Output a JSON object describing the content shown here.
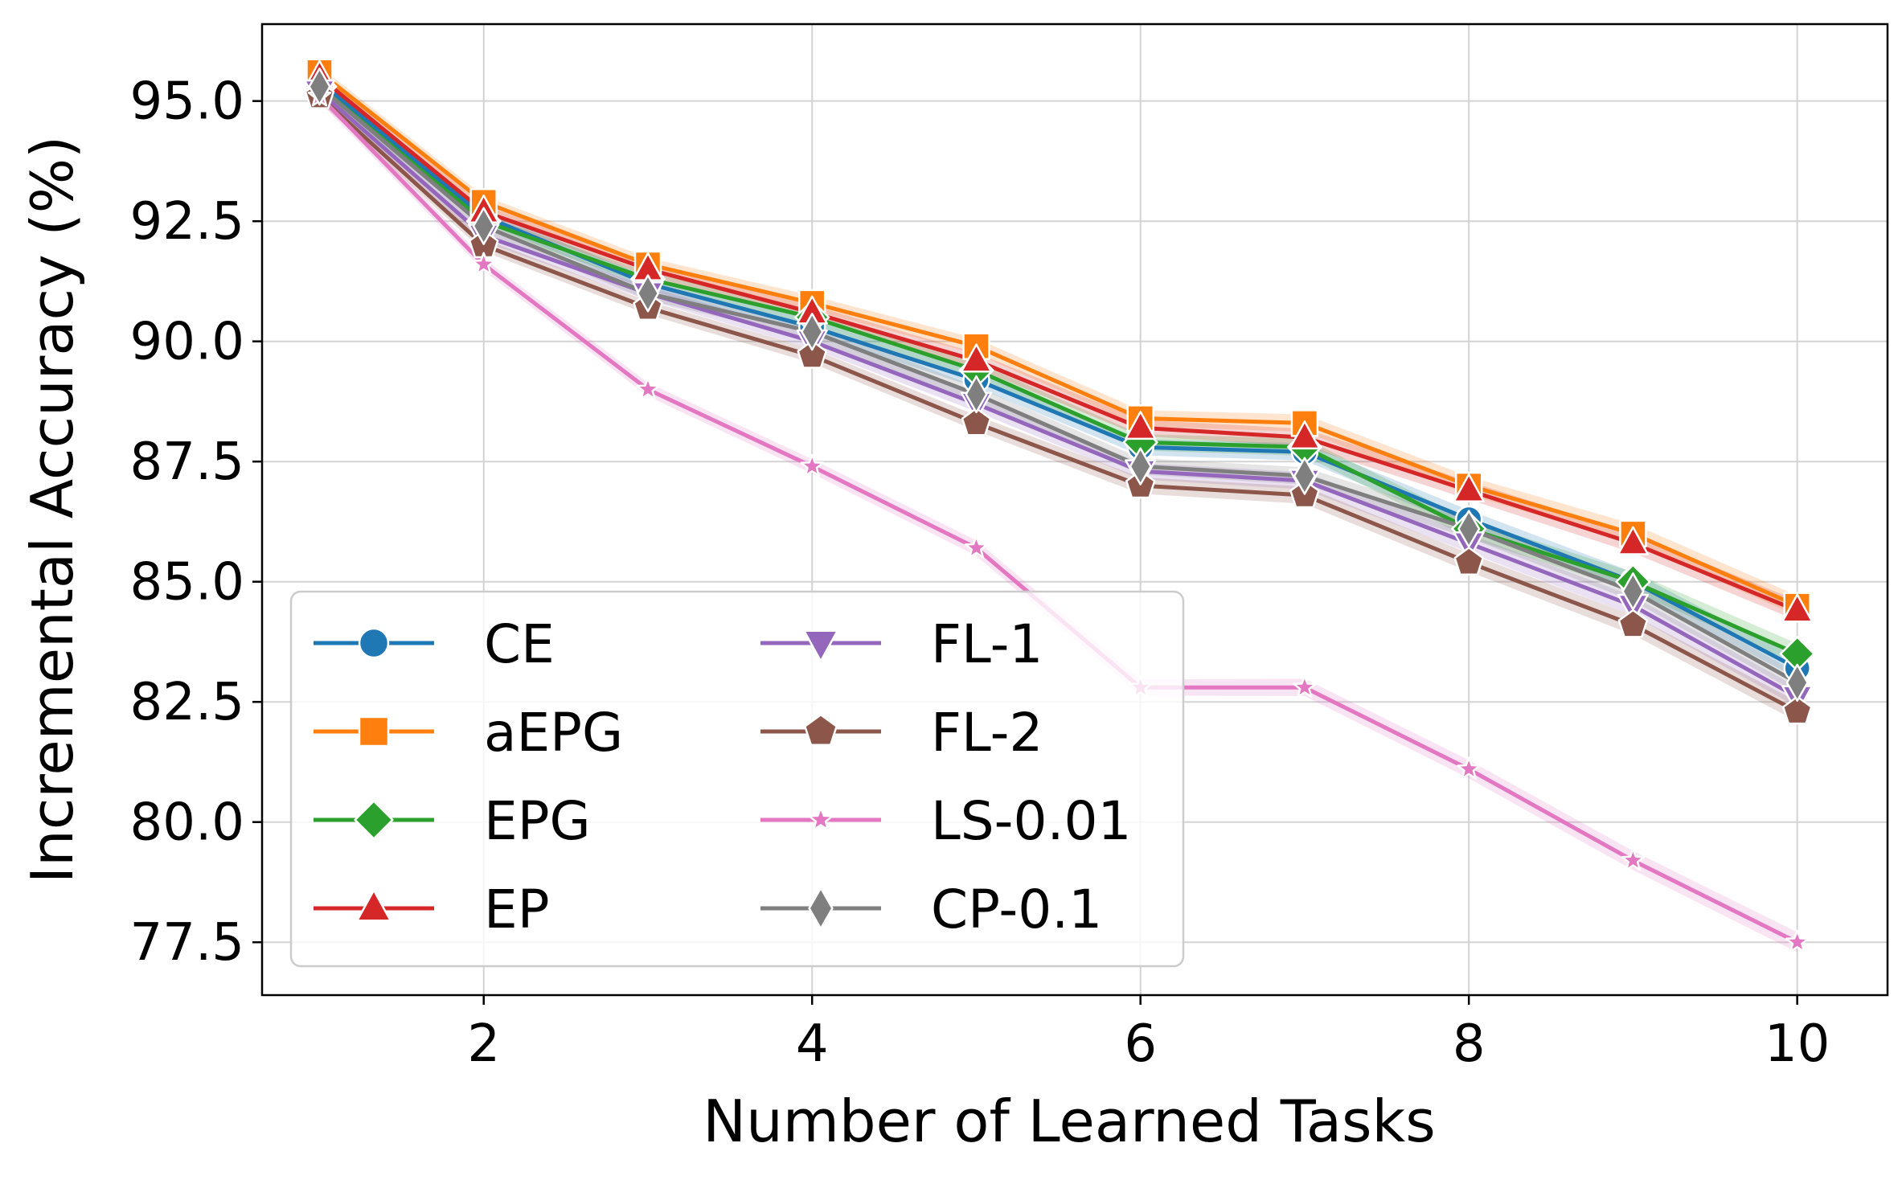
{
  "chart_data": {
    "type": "line",
    "xlabel": "Number of Learned Tasks",
    "ylabel": "Incremental Accuracy (%)",
    "xlim": [
      0.65,
      10.55
    ],
    "ylim": [
      76.4,
      96.6
    ],
    "xticks": [
      2,
      4,
      6,
      8,
      10
    ],
    "yticks": [
      77.5,
      80.0,
      82.5,
      85.0,
      87.5,
      90.0,
      92.5,
      95.0
    ],
    "ytick_labels": [
      "77.5",
      "80.0",
      "82.5",
      "85.0",
      "87.5",
      "90.0",
      "92.5",
      "95.0"
    ],
    "xtick_labels": [
      "2",
      "4",
      "6",
      "8",
      "10"
    ],
    "grid": true,
    "legend_position": "lower-left",
    "legend_columns": 2,
    "x": [
      1,
      2,
      3,
      4,
      5,
      6,
      7,
      8,
      9,
      10
    ],
    "series": [
      {
        "name": "CE",
        "color": "#1f77b4",
        "marker": "circle",
        "values": [
          95.4,
          92.6,
          91.2,
          90.3,
          89.2,
          87.8,
          87.7,
          86.3,
          85.0,
          83.2
        ]
      },
      {
        "name": "aEPG",
        "color": "#ff7f0e",
        "marker": "square",
        "values": [
          95.6,
          92.9,
          91.6,
          90.8,
          89.9,
          88.4,
          88.3,
          87.0,
          86.0,
          84.5
        ]
      },
      {
        "name": "EPG",
        "color": "#2ca02c",
        "marker": "diamond",
        "values": [
          95.3,
          92.5,
          91.3,
          90.5,
          89.4,
          87.9,
          87.8,
          86.1,
          85.0,
          83.5
        ]
      },
      {
        "name": "EP",
        "color": "#d62728",
        "marker": "triangle-up",
        "values": [
          95.5,
          92.7,
          91.5,
          90.6,
          89.6,
          88.2,
          88.0,
          86.9,
          85.8,
          84.4
        ]
      },
      {
        "name": "FL-1",
        "color": "#9467bd",
        "marker": "triangle-down",
        "values": [
          95.2,
          92.2,
          91.0,
          90.0,
          88.7,
          87.3,
          87.1,
          85.8,
          84.5,
          82.6
        ]
      },
      {
        "name": "FL-2",
        "color": "#8c564b",
        "marker": "pentagon",
        "values": [
          95.1,
          92.0,
          90.7,
          89.7,
          88.3,
          87.0,
          86.8,
          85.4,
          84.1,
          82.3
        ]
      },
      {
        "name": "LS-0.01",
        "color": "#e377c2",
        "marker": "star",
        "values": [
          95.1,
          91.6,
          89.0,
          87.4,
          85.7,
          82.8,
          82.8,
          81.1,
          79.2,
          77.5
        ]
      },
      {
        "name": "CP-0.1",
        "color": "#7f7f7f",
        "marker": "thin-diamond",
        "values": [
          95.3,
          92.4,
          91.0,
          90.2,
          88.9,
          87.4,
          87.2,
          86.1,
          84.8,
          82.9
        ]
      }
    ]
  }
}
